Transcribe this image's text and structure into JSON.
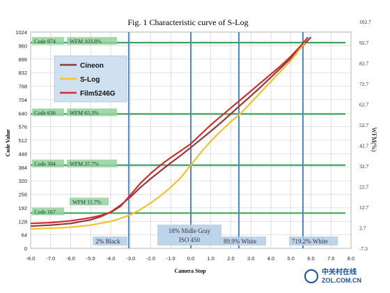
{
  "chart_data": {
    "type": "line",
    "title": "Fig. 1 Characteristic curve of S-Log",
    "xlabel": "Camera Stop",
    "ylabel": "Code Value",
    "y2label": "WFM(%)",
    "xlim": [
      -8,
      8
    ],
    "ylim": [
      0,
      1024
    ],
    "x_ticks": [
      "-8.0",
      "-7.0",
      "-6.0",
      "-5.0",
      "-4.0",
      "-3.0",
      "-2.0",
      "-1.0",
      "0.0",
      "1.0",
      "2.0",
      "3.0",
      "4.0",
      "5.0",
      "6.0",
      "7.0",
      "8.0"
    ],
    "y_ticks": [
      "0",
      "64",
      "128",
      "192",
      "256",
      "320",
      "384",
      "448",
      "512",
      "576",
      "640",
      "704",
      "768",
      "832",
      "896",
      "960",
      "1024"
    ],
    "y2_ticks": [
      "-7.3",
      "2.7",
      "12.7",
      "22.7",
      "32.7",
      "42.7",
      "52.7",
      "62.7",
      "72.7",
      "82.7",
      "92.7",
      "102.7"
    ],
    "grid": true,
    "legend_position": "top-left",
    "series": [
      {
        "name": "Cineon",
        "color": "#8b3a3a",
        "x": [
          -8.0,
          -7.0,
          -6.0,
          -5.0,
          -4.5,
          -4.0,
          -3.5,
          -3.0,
          -2.5,
          -2.0,
          -1.5,
          -1.0,
          -0.5,
          0.0,
          0.5,
          1.0,
          1.5,
          2.0,
          2.5,
          3.0,
          3.5,
          4.0,
          4.5,
          5.0,
          5.5,
          6.0
        ],
        "y": [
          105,
          110,
          118,
          135,
          150,
          172,
          205,
          245,
          290,
          330,
          368,
          405,
          440,
          478,
          516,
          555,
          595,
          637,
          680,
          722,
          765,
          810,
          855,
          900,
          950,
          1000
        ]
      },
      {
        "name": "S-Log",
        "color": "#f2c12e",
        "x": [
          -8.0,
          -7.0,
          -6.0,
          -5.0,
          -4.0,
          -3.5,
          -3.0,
          -2.5,
          -2.0,
          -1.5,
          -1.0,
          -0.5,
          0.0,
          0.5,
          1.0,
          1.5,
          2.0,
          2.5,
          3.0,
          3.5,
          4.0,
          4.5,
          5.0,
          5.5,
          5.7
        ],
        "y": [
          92,
          95,
          100,
          110,
          128,
          142,
          160,
          185,
          215,
          250,
          290,
          335,
          394,
          455,
          508,
          555,
          600,
          640,
          690,
          740,
          790,
          840,
          890,
          950,
          975
        ]
      },
      {
        "name": "Film5246G",
        "color": "#d42a2a",
        "x": [
          -8.0,
          -7.0,
          -6.0,
          -5.0,
          -4.5,
          -4.0,
          -3.5,
          -3.0,
          -2.5,
          -2.0,
          -1.5,
          -1.0,
          -0.5,
          0.0,
          0.5,
          1.0,
          1.5,
          2.0,
          2.5,
          3.0,
          3.5,
          4.0,
          4.5,
          5.0,
          5.5,
          5.85
        ],
        "y": [
          118,
          122,
          130,
          145,
          156,
          170,
          200,
          255,
          310,
          355,
          395,
          430,
          462,
          495,
          540,
          585,
          625,
          665,
          705,
          745,
          785,
          825,
          865,
          910,
          960,
          1000
        ]
      }
    ],
    "reference_lines": {
      "horizontal": [
        {
          "code_label": "Code 974",
          "wfm_label": "WFM 103.8%",
          "y": 974
        },
        {
          "code_label": "Code 636",
          "wfm_label": "WFM 65.3%",
          "y": 636
        },
        {
          "code_label": "Code 394",
          "wfm_label": "WFM 37.7%",
          "y": 394
        },
        {
          "code_label": "Code 167",
          "wfm_label": "WFM 11.7%",
          "y": 167
        }
      ],
      "vertical": [
        {
          "label": "2% Black",
          "x": -3.1
        },
        {
          "label_line1": "18% Midle Gray",
          "label_line2": "ISO 450",
          "x": 0.0
        },
        {
          "label": "89.9% White",
          "x": 2.4
        },
        {
          "label": "719.2% White",
          "x": 5.6
        }
      ]
    }
  },
  "watermark": {
    "line1": "中关村在线",
    "line2": "ZOL.COM.CN"
  }
}
